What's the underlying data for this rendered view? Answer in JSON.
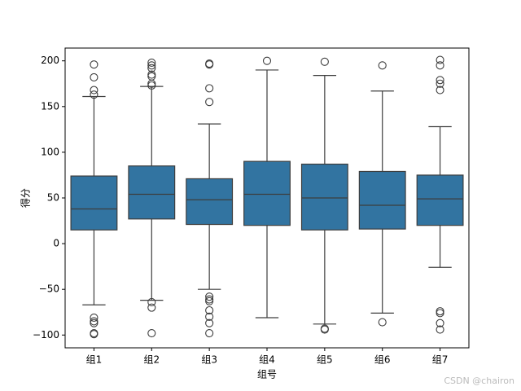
{
  "chart_data": {
    "type": "box",
    "xlabel": "组号",
    "ylabel": "得分",
    "categories": [
      "组1",
      "组2",
      "组3",
      "组4",
      "组5",
      "组6",
      "组7"
    ],
    "color": "#3274a1",
    "boxes": [
      {
        "whislo": -67,
        "q1": 15,
        "med": 38,
        "q3": 74,
        "whishi": 161,
        "fliers": [
          196,
          182,
          168,
          163,
          -81,
          -85,
          -87,
          -98,
          -99
        ]
      },
      {
        "whislo": -62,
        "q1": 27,
        "med": 54,
        "q3": 85,
        "whishi": 172,
        "fliers": [
          198,
          195,
          192,
          185,
          183,
          175,
          173,
          -64,
          -70,
          -98
        ]
      },
      {
        "whislo": -50,
        "q1": 21,
        "med": 48,
        "q3": 71,
        "whishi": 131,
        "fliers": [
          197,
          196,
          170,
          155,
          -58,
          -61,
          -63,
          -73,
          -80,
          -87,
          -98
        ]
      },
      {
        "whislo": -81,
        "q1": 20,
        "med": 54,
        "q3": 90,
        "whishi": 190,
        "fliers": [
          200
        ]
      },
      {
        "whislo": -88,
        "q1": 15,
        "med": 50,
        "q3": 87,
        "whishi": 184,
        "fliers": [
          199,
          -93,
          -94
        ]
      },
      {
        "whislo": -76,
        "q1": 16,
        "med": 42,
        "q3": 79,
        "whishi": 167,
        "fliers": [
          195,
          -86
        ]
      },
      {
        "whislo": -26,
        "q1": 20,
        "med": 49,
        "q3": 75,
        "whishi": 128,
        "fliers": [
          201,
          195,
          179,
          175,
          168,
          -74,
          -76,
          -87,
          -94
        ]
      }
    ],
    "ylim": [
      -114,
      214
    ],
    "yticks": [
      {
        "value": -100,
        "label": "−100"
      },
      {
        "value": -50,
        "label": "−50"
      },
      0,
      50,
      100,
      150,
      200
    ],
    "watermark": "CSDN @chairon"
  }
}
